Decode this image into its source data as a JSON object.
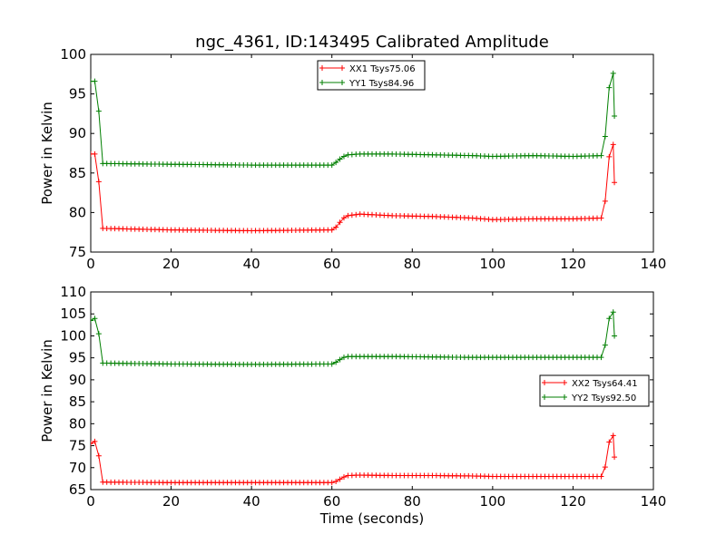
{
  "title": "ngc_4361, ID:143495 Calibrated Amplitude",
  "colors": {
    "red": "#ff0000",
    "green": "#007f00"
  },
  "chart_data": [
    {
      "type": "line",
      "marker": "plus",
      "title": "ngc_4361, ID:143495 Calibrated Amplitude",
      "xlabel": "",
      "ylabel": "Power in Kelvin",
      "xlim": [
        0,
        140
      ],
      "ylim": [
        75,
        100
      ],
      "xticks": [
        0,
        20,
        40,
        60,
        80,
        100,
        120,
        140
      ],
      "yticks": [
        75,
        80,
        85,
        90,
        95,
        100
      ],
      "legend_position": "top-center",
      "grid": false,
      "series": [
        {
          "name": "XX1 Tsys75.06",
          "color": "#ff0000",
          "levels": [
            [
              0,
              87.4
            ],
            [
              1.5,
              87.4
            ],
            [
              2.2,
              82.5
            ],
            [
              2.8,
              78.0
            ],
            [
              20,
              77.8
            ],
            [
              40,
              77.7
            ],
            [
              60,
              77.8
            ],
            [
              61.5,
              78.3
            ],
            [
              62.5,
              79.2
            ],
            [
              64,
              79.6
            ],
            [
              67,
              79.8
            ],
            [
              75,
              79.6
            ],
            [
              85,
              79.5
            ],
            [
              95,
              79.3
            ],
            [
              100,
              79.1
            ],
            [
              110,
              79.2
            ],
            [
              120,
              79.2
            ],
            [
              127.5,
              79.3
            ],
            [
              128.2,
              82.3
            ],
            [
              128.8,
              85.5
            ],
            [
              129.2,
              88.6
            ],
            [
              130,
              88.6
            ],
            [
              130.3,
              83.8
            ]
          ]
        },
        {
          "name": "YY1 Tsys84.96",
          "color": "#007f00",
          "levels": [
            [
              0,
              96.6
            ],
            [
              1.5,
              96.6
            ],
            [
              2.2,
              91.3
            ],
            [
              2.8,
              86.2
            ],
            [
              20,
              86.1
            ],
            [
              40,
              86.0
            ],
            [
              60,
              86.0
            ],
            [
              61.5,
              86.5
            ],
            [
              62.5,
              87.0
            ],
            [
              64,
              87.3
            ],
            [
              67,
              87.4
            ],
            [
              75,
              87.4
            ],
            [
              85,
              87.3
            ],
            [
              95,
              87.2
            ],
            [
              100,
              87.1
            ],
            [
              110,
              87.2
            ],
            [
              120,
              87.1
            ],
            [
              127.5,
              87.2
            ],
            [
              128.2,
              90.6
            ],
            [
              128.8,
              94.0
            ],
            [
              129.2,
              97.6
            ],
            [
              130,
              97.6
            ],
            [
              130.3,
              92.2
            ]
          ]
        }
      ]
    },
    {
      "type": "line",
      "marker": "plus",
      "title": "",
      "xlabel": "Time (seconds)",
      "ylabel": "Power in Kelvin",
      "xlim": [
        0,
        140
      ],
      "ylim": [
        65,
        110
      ],
      "xticks": [
        0,
        20,
        40,
        60,
        80,
        100,
        120,
        140
      ],
      "yticks": [
        65,
        70,
        75,
        80,
        85,
        90,
        95,
        100,
        105,
        110
      ],
      "legend_position": "center-right",
      "grid": false,
      "series": [
        {
          "name": "XX2 Tsys64.41",
          "color": "#ff0000",
          "levels": [
            [
              0,
              75.5
            ],
            [
              1.5,
              76.2
            ],
            [
              2.2,
              71.3
            ],
            [
              2.8,
              66.7
            ],
            [
              20,
              66.6
            ],
            [
              40,
              66.6
            ],
            [
              60,
              66.6
            ],
            [
              61.5,
              67.0
            ],
            [
              62.5,
              67.7
            ],
            [
              64,
              68.2
            ],
            [
              67,
              68.3
            ],
            [
              75,
              68.2
            ],
            [
              85,
              68.2
            ],
            [
              95,
              68.1
            ],
            [
              100,
              68.0
            ],
            [
              110,
              68.0
            ],
            [
              120,
              68.0
            ],
            [
              127.5,
              68.0
            ],
            [
              128.2,
              71.0
            ],
            [
              128.8,
              74.2
            ],
            [
              129.2,
              77.4
            ],
            [
              130,
              77.3
            ],
            [
              130.3,
              72.4
            ]
          ]
        },
        {
          "name": "YY2 Tsys92.50",
          "color": "#007f00",
          "levels": [
            [
              0,
              103.5
            ],
            [
              1.5,
              104.2
            ],
            [
              2.2,
              99.0
            ],
            [
              2.8,
              93.8
            ],
            [
              20,
              93.6
            ],
            [
              40,
              93.5
            ],
            [
              60,
              93.6
            ],
            [
              61.5,
              94.2
            ],
            [
              62.5,
              95.0
            ],
            [
              64,
              95.3
            ],
            [
              67,
              95.3
            ],
            [
              75,
              95.3
            ],
            [
              85,
              95.2
            ],
            [
              95,
              95.1
            ],
            [
              100,
              95.1
            ],
            [
              110,
              95.1
            ],
            [
              120,
              95.1
            ],
            [
              127.5,
              95.1
            ],
            [
              128.2,
              99.0
            ],
            [
              128.8,
              102.5
            ],
            [
              129.2,
              105.4
            ],
            [
              130,
              105.4
            ],
            [
              130.3,
              100.0
            ]
          ]
        }
      ]
    }
  ]
}
